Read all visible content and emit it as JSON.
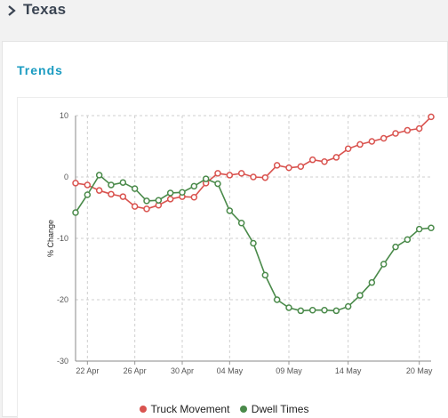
{
  "header": {
    "title": "Texas",
    "icon": "chevron-right-icon"
  },
  "panel": {
    "title": "Trends"
  },
  "colors": {
    "truck": "#d9534f",
    "dwell": "#4a8a4a",
    "accent": "#1a9bc1"
  },
  "legend": {
    "truck_label": "Truck Movement",
    "dwell_label": "Dwell Times"
  },
  "chart_data": {
    "type": "line",
    "ylabel": "% Change",
    "ylim": [
      -30,
      10
    ],
    "y_ticks": [
      "10",
      "0",
      "-10",
      "-20",
      "-30"
    ],
    "x_ticks": [
      "22 Apr",
      "26 Apr",
      "30 Apr",
      "04 May",
      "09 May",
      "14 May",
      "20 May"
    ],
    "x_tick_days": [
      1,
      5,
      9,
      13,
      18,
      23,
      29
    ],
    "grid": true,
    "x_days": [
      0,
      1,
      2,
      3,
      4,
      5,
      6,
      7,
      8,
      9,
      10,
      11,
      12,
      13,
      14,
      15,
      16,
      17,
      18,
      19,
      20,
      21,
      22,
      23,
      24,
      25,
      26,
      27,
      28,
      29,
      30
    ],
    "series": [
      {
        "name": "Truck Movement",
        "values": [
          -1,
          -1.3,
          -2.2,
          -2.8,
          -3.2,
          -4.8,
          -5.2,
          -4.6,
          -3.6,
          -3.2,
          -3.3,
          -1.0,
          0.6,
          0.3,
          0.6,
          0.0,
          -0.1,
          1.9,
          1.5,
          1.7,
          2.8,
          2.5,
          3.2,
          4.6,
          5.3,
          5.8,
          6.3,
          7.1,
          7.6,
          7.9,
          9.8
        ]
      },
      {
        "name": "Dwell Times",
        "values": [
          -5.8,
          -2.9,
          0.3,
          -1.3,
          -0.9,
          -1.9,
          -3.9,
          -3.8,
          -2.6,
          -2.5,
          -1.5,
          -0.3,
          -1.1,
          -5.5,
          -7.5,
          -10.8,
          -16.0,
          -20.0,
          -21.3,
          -21.8,
          -21.7,
          -21.7,
          -21.8,
          -21.1,
          -19.3,
          -17.2,
          -14.2,
          -11.4,
          -10.2,
          -8.5,
          -8.3
        ]
      }
    ]
  }
}
